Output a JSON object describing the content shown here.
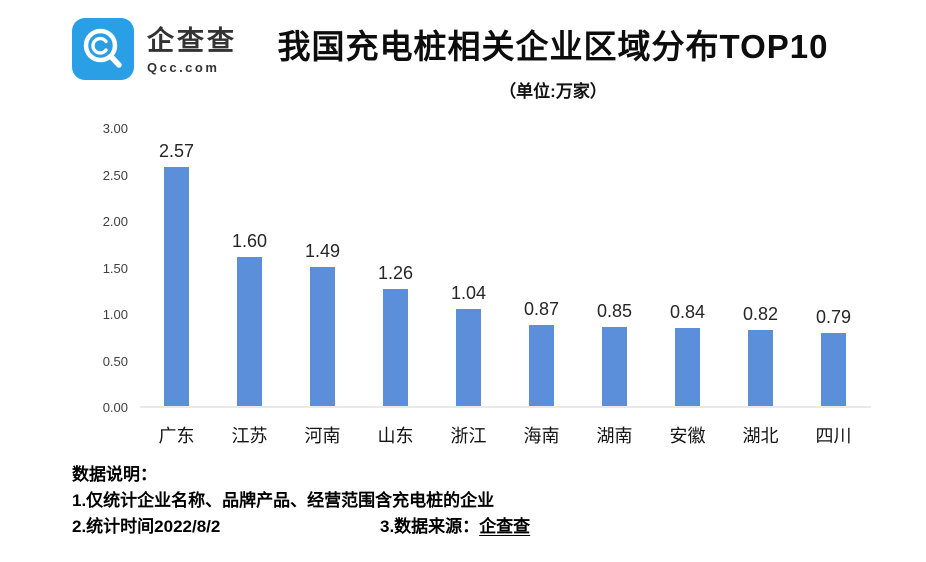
{
  "header": {
    "logo": {
      "name": "企查查",
      "domain": "Qcc.com",
      "brand_color": "#2B9FE5"
    },
    "title": "我国充电桩相关企业区域分布TOP10",
    "subtitle": "（单位:万家）"
  },
  "chart_data": {
    "type": "bar",
    "title": "我国充电桩相关企业区域分布TOP10",
    "unit_label": "（单位:万家）",
    "categories": [
      "广东",
      "江苏",
      "河南",
      "山东",
      "浙江",
      "海南",
      "湖南",
      "安徽",
      "湖北",
      "四川"
    ],
    "values": [
      2.57,
      1.6,
      1.49,
      1.26,
      1.04,
      0.87,
      0.85,
      0.84,
      0.82,
      0.79
    ],
    "value_labels": [
      "2.57",
      "1.60",
      "1.49",
      "1.26",
      "1.04",
      "0.87",
      "0.85",
      "0.84",
      "0.82",
      "0.79"
    ],
    "ylim": [
      0,
      3.0
    ],
    "yticks": [
      {
        "label": "3.00",
        "value": 3.0
      },
      {
        "label": "2.50",
        "value": 2.5
      },
      {
        "label": "2.00",
        "value": 2.0
      },
      {
        "label": "1.50",
        "value": 1.5
      },
      {
        "label": "1.00",
        "value": 1.0
      },
      {
        "label": "0.50",
        "value": 0.5
      },
      {
        "label": "0.00",
        "value": 0.0
      }
    ],
    "grid": false,
    "legend": "none",
    "bar_color": "#5B8FD9"
  },
  "footer": {
    "heading": "数据说明：",
    "note1": "1.仅统计企业名称、品牌产品、经营范围含充电桩的企业",
    "note2": "2.统计时间2022/8/2",
    "note3_prefix": "3.数据来源：",
    "note3_brand": "企查查"
  }
}
